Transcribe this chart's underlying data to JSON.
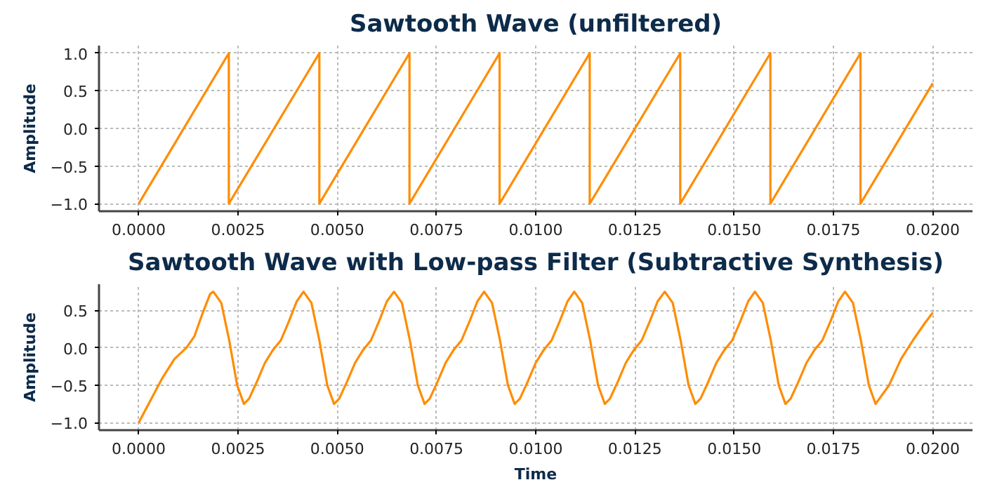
{
  "chart_data": [
    {
      "type": "line",
      "title": "Sawtooth Wave (unfiltered)",
      "ylabel": "Amplitude",
      "x": [
        0,
        0.00227,
        0.00227,
        0.00455,
        0.00455,
        0.00682,
        0.00682,
        0.00909,
        0.00909,
        0.01136,
        0.01136,
        0.01364,
        0.01364,
        0.01591,
        0.01591,
        0.01818,
        0.01818,
        0.02
      ],
      "series": [
        {
          "color": "#ff8c00",
          "values": [
            -1,
            1,
            -1,
            1,
            -1,
            1,
            -1,
            1,
            -1,
            1,
            -1,
            1,
            -1,
            1,
            -1,
            1,
            -1,
            0.6
          ]
        }
      ],
      "xlim": [
        -0.001,
        0.021
      ],
      "ylim": [
        -1.1,
        1.1
      ],
      "xticks": [
        {
          "value": 0,
          "label": "0.0000"
        },
        {
          "value": 0.0025,
          "label": "0.0025"
        },
        {
          "value": 0.005,
          "label": "0.0050"
        },
        {
          "value": 0.0075,
          "label": "0.0075"
        },
        {
          "value": 0.01,
          "label": "0.0100"
        },
        {
          "value": 0.0125,
          "label": "0.0125"
        },
        {
          "value": 0.015,
          "label": "0.0150"
        },
        {
          "value": 0.0175,
          "label": "0.0175"
        },
        {
          "value": 0.02,
          "label": "0.0200"
        }
      ],
      "yticks": [
        {
          "value": -1,
          "label": "−1.0"
        },
        {
          "value": -0.5,
          "label": "−0.5"
        },
        {
          "value": 0,
          "label": "0.0"
        },
        {
          "value": 0.5,
          "label": "0.5"
        },
        {
          "value": 1,
          "label": "1.0"
        }
      ],
      "grid": true,
      "line_style": "solid"
    },
    {
      "type": "line",
      "title": "Sawtooth Wave with Low-pass Filter (Subtractive Synthesis)",
      "xlabel": "Time",
      "ylabel": "Amplitude",
      "x": [
        0,
        0.0003,
        0.0006,
        0.0009,
        0.0012,
        0.0014,
        0.0016,
        0.0018,
        0.00188,
        0.00208,
        0.00228,
        0.00248,
        0.00265,
        0.00278,
        0.00298,
        0.00318,
        0.00338,
        0.00358,
        0.00378,
        0.00398,
        0.00415,
        0.00435,
        0.00455,
        0.00475,
        0.00492,
        0.00505,
        0.00525,
        0.00545,
        0.00565,
        0.00585,
        0.00605,
        0.00625,
        0.00643,
        0.00663,
        0.00683,
        0.00703,
        0.0072,
        0.00733,
        0.00753,
        0.00773,
        0.00793,
        0.00813,
        0.00833,
        0.00853,
        0.0087,
        0.0089,
        0.0091,
        0.0093,
        0.00947,
        0.0096,
        0.0098,
        0.01,
        0.0102,
        0.0104,
        0.0106,
        0.0108,
        0.01097,
        0.01117,
        0.01137,
        0.01157,
        0.01174,
        0.01187,
        0.01207,
        0.01227,
        0.01247,
        0.01267,
        0.01287,
        0.01307,
        0.01325,
        0.01345,
        0.01365,
        0.01385,
        0.01402,
        0.01415,
        0.01435,
        0.01455,
        0.01475,
        0.01495,
        0.01515,
        0.01535,
        0.01552,
        0.01572,
        0.01592,
        0.01612,
        0.01629,
        0.01642,
        0.01662,
        0.01682,
        0.01702,
        0.01722,
        0.01742,
        0.01762,
        0.01779,
        0.01799,
        0.01819,
        0.01839,
        0.01856,
        0.0189,
        0.0192,
        0.0195,
        0.0198,
        0.02
      ],
      "series": [
        {
          "color": "#ff8c00",
          "values": [
            -1,
            -0.7,
            -0.4,
            -0.15,
            0,
            0.15,
            0.45,
            0.72,
            0.75,
            0.6,
            0.1,
            -0.5,
            -0.75,
            -0.68,
            -0.45,
            -0.2,
            -0.03,
            0.1,
            0.35,
            0.62,
            0.75,
            0.6,
            0.1,
            -0.5,
            -0.75,
            -0.68,
            -0.45,
            -0.2,
            -0.03,
            0.1,
            0.35,
            0.62,
            0.75,
            0.6,
            0.1,
            -0.5,
            -0.75,
            -0.68,
            -0.45,
            -0.2,
            -0.03,
            0.1,
            0.35,
            0.62,
            0.75,
            0.6,
            0.1,
            -0.5,
            -0.75,
            -0.68,
            -0.45,
            -0.2,
            -0.03,
            0.1,
            0.35,
            0.62,
            0.75,
            0.6,
            0.1,
            -0.5,
            -0.75,
            -0.68,
            -0.45,
            -0.2,
            -0.03,
            0.1,
            0.35,
            0.62,
            0.75,
            0.6,
            0.1,
            -0.5,
            -0.75,
            -0.68,
            -0.45,
            -0.2,
            -0.03,
            0.1,
            0.35,
            0.62,
            0.75,
            0.6,
            0.1,
            -0.5,
            -0.75,
            -0.68,
            -0.45,
            -0.2,
            -0.03,
            0.1,
            0.35,
            0.62,
            0.75,
            0.6,
            0.1,
            -0.5,
            -0.75,
            -0.5,
            -0.15,
            0.1,
            0.33,
            0.47
          ]
        }
      ],
      "xlim": [
        -0.001,
        0.021
      ],
      "ylim": [
        -1.1,
        0.85
      ],
      "xticks": [
        {
          "value": 0,
          "label": "0.0000"
        },
        {
          "value": 0.0025,
          "label": "0.0025"
        },
        {
          "value": 0.005,
          "label": "0.0050"
        },
        {
          "value": 0.0075,
          "label": "0.0075"
        },
        {
          "value": 0.01,
          "label": "0.0100"
        },
        {
          "value": 0.0125,
          "label": "0.0125"
        },
        {
          "value": 0.015,
          "label": "0.0150"
        },
        {
          "value": 0.0175,
          "label": "0.0175"
        },
        {
          "value": 0.02,
          "label": "0.0200"
        }
      ],
      "yticks": [
        {
          "value": -1,
          "label": "−1.0"
        },
        {
          "value": -0.5,
          "label": "−0.5"
        },
        {
          "value": 0,
          "label": "0.0"
        },
        {
          "value": 0.5,
          "label": "0.5"
        }
      ],
      "grid": true,
      "line_style": "solid"
    }
  ]
}
